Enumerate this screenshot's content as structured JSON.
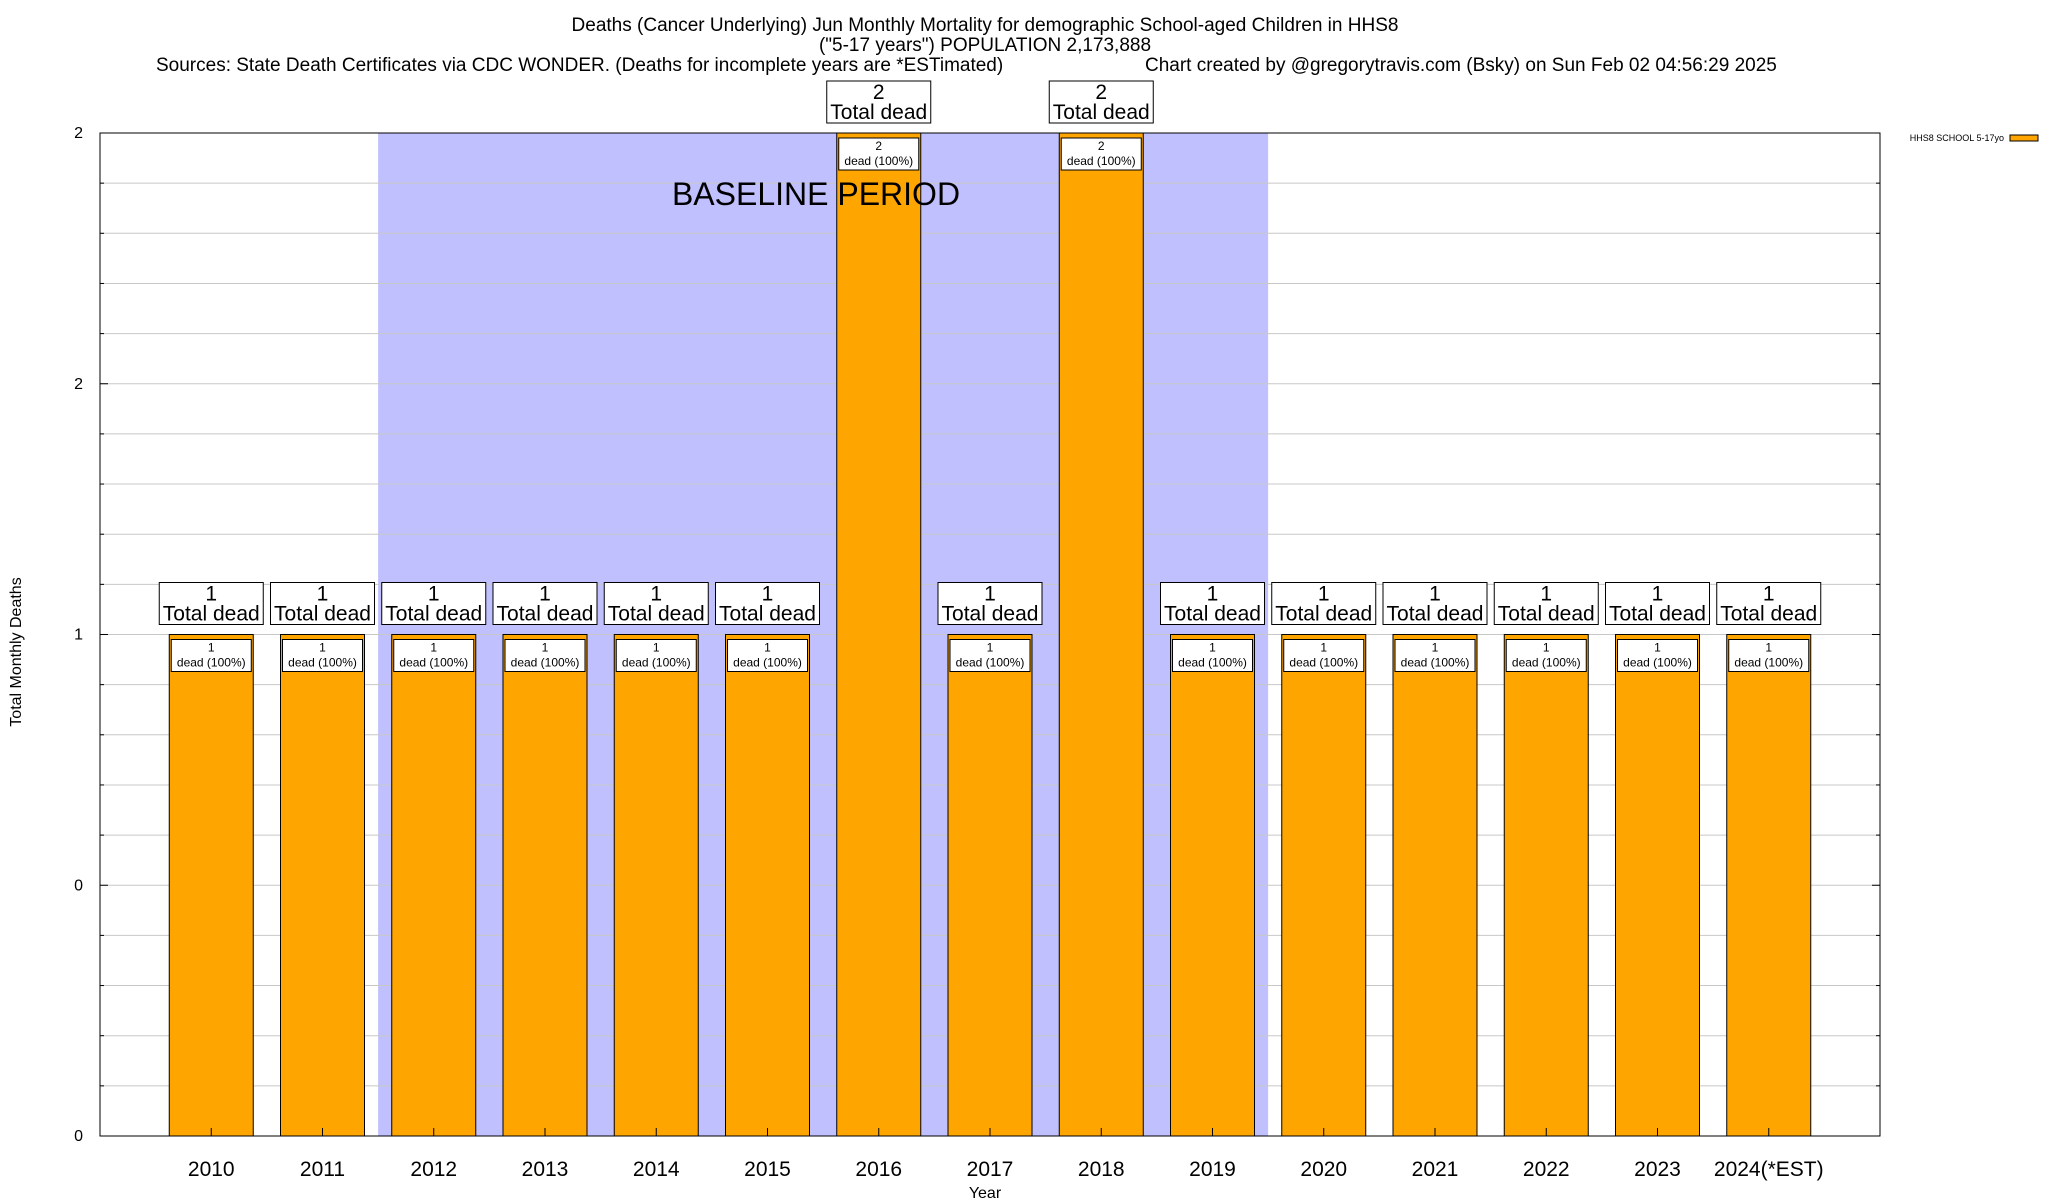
{
  "chart_data": {
    "type": "bar",
    "title_lines": [
      "Deaths (Cancer Underlying) Jun Monthly Mortality for demographic School-aged Children in HHS8",
      "(\"5-17 years\") POPULATION 2,173,888"
    ],
    "sources": "Sources: State Death Certificates via CDC WONDER. (Deaths for incomplete years are *ESTimated)",
    "credit": "Chart created by @gregorytravis.com (Bsky) on Sun Feb 02 04:56:29 2025",
    "xlabel": "Year",
    "ylabel": "Total Monthly Deaths",
    "y_tick_labels": [
      "0",
      "0",
      "1",
      "2",
      "2"
    ],
    "ylim": [
      0,
      2
    ],
    "grid": true,
    "legend_placement": "top-right",
    "baseline_label": "BASELINE PERIOD",
    "baseline_range": [
      "2012",
      "2019"
    ],
    "categories": [
      "2010",
      "2011",
      "2012",
      "2013",
      "2014",
      "2015",
      "2016",
      "2017",
      "2018",
      "2019",
      "2020",
      "2021",
      "2022",
      "2023",
      "2024(*EST)"
    ],
    "series": [
      {
        "name": "HHS8 SCHOOL 5-17yo",
        "values": [
          1,
          1,
          1,
          1,
          1,
          1,
          2,
          1,
          2,
          1,
          1,
          1,
          1,
          1,
          1
        ],
        "color": "#ffa500"
      }
    ],
    "total_label_suffix": "Total dead",
    "inner_label_suffix": "dead (100%)",
    "colors": {
      "bar": "#ffa500",
      "baseline_band": "#c0c0ff",
      "grid": "#c8c8c8"
    }
  }
}
